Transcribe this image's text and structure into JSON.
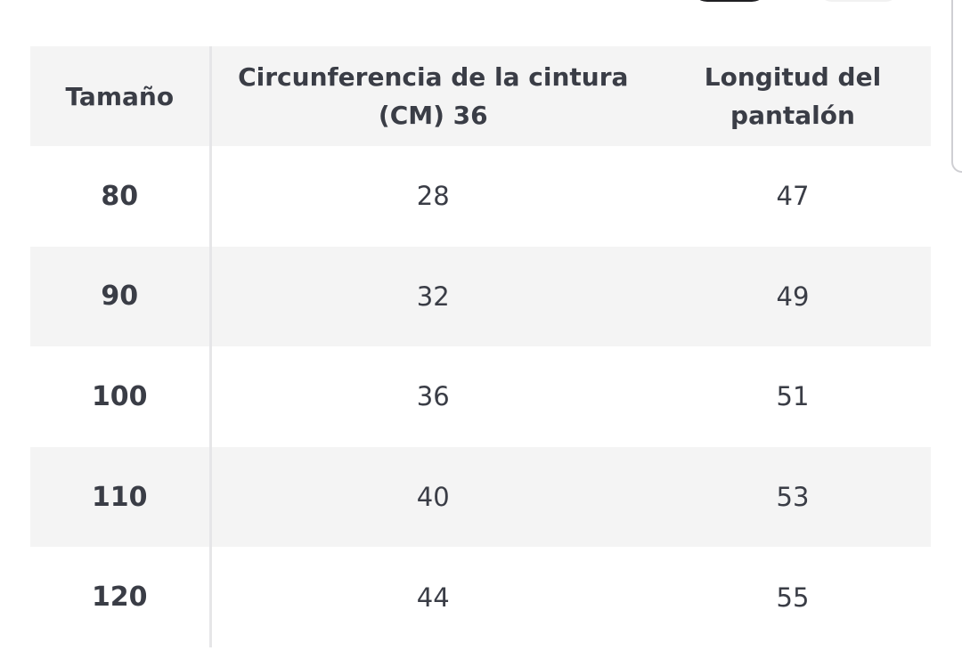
{
  "table": {
    "headers": [
      "Tamaño",
      "Circunferencia de la cintura (CM) 36",
      "Longitud del pantalón"
    ],
    "header_lines": [
      [
        "Tamaño"
      ],
      [
        "Circunferencia de la cintura",
        "(CM) 36"
      ],
      [
        "Longitud del",
        "pantalón"
      ]
    ],
    "rows": [
      [
        "80",
        "28",
        "47"
      ],
      [
        "90",
        "32",
        "49"
      ],
      [
        "100",
        "36",
        "51"
      ],
      [
        "110",
        "40",
        "53"
      ],
      [
        "120",
        "44",
        "55"
      ]
    ]
  },
  "colors": {
    "text": "#3a3d46",
    "stripe": "#f4f4f4",
    "divider": "#e6e6e8"
  }
}
